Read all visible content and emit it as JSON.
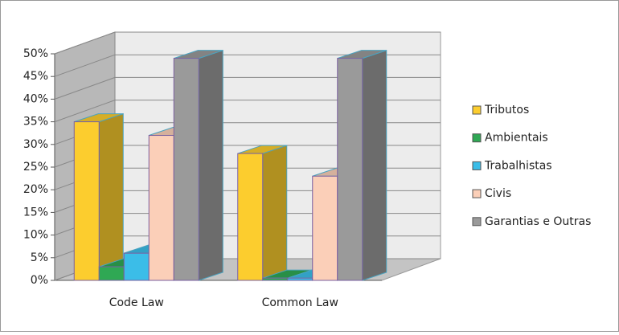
{
  "chart_data": {
    "type": "bar3d",
    "categories": [
      "Code Law",
      "Common Law"
    ],
    "series": [
      {
        "name": "Tributos",
        "color": "#fccd2e",
        "values": [
          35,
          28
        ]
      },
      {
        "name": "Ambientais",
        "color": "#2fa854",
        "values": [
          3,
          0.5
        ]
      },
      {
        "name": "Trabalhistas",
        "color": "#3bbde8",
        "values": [
          6,
          0.5
        ]
      },
      {
        "name": "Civis",
        "color": "#fbcfb8",
        "values": [
          32,
          23
        ]
      },
      {
        "name": "Garantias e Outras",
        "color": "#9a9a9a",
        "values": [
          49,
          49
        ]
      }
    ],
    "ylim": [
      0,
      50
    ],
    "yticks": [
      {
        "value": 0,
        "label": "0%"
      },
      {
        "value": 5,
        "label": "5%"
      },
      {
        "value": 10,
        "label": "10%"
      },
      {
        "value": 15,
        "label": "15%"
      },
      {
        "value": 20,
        "label": "20%"
      },
      {
        "value": 25,
        "label": "25%"
      },
      {
        "value": 30,
        "label": "30%"
      },
      {
        "value": 35,
        "label": "35%"
      },
      {
        "value": 40,
        "label": "40%"
      },
      {
        "value": 45,
        "label": "45%"
      },
      {
        "value": 50,
        "label": "50%"
      }
    ],
    "grid": true
  }
}
